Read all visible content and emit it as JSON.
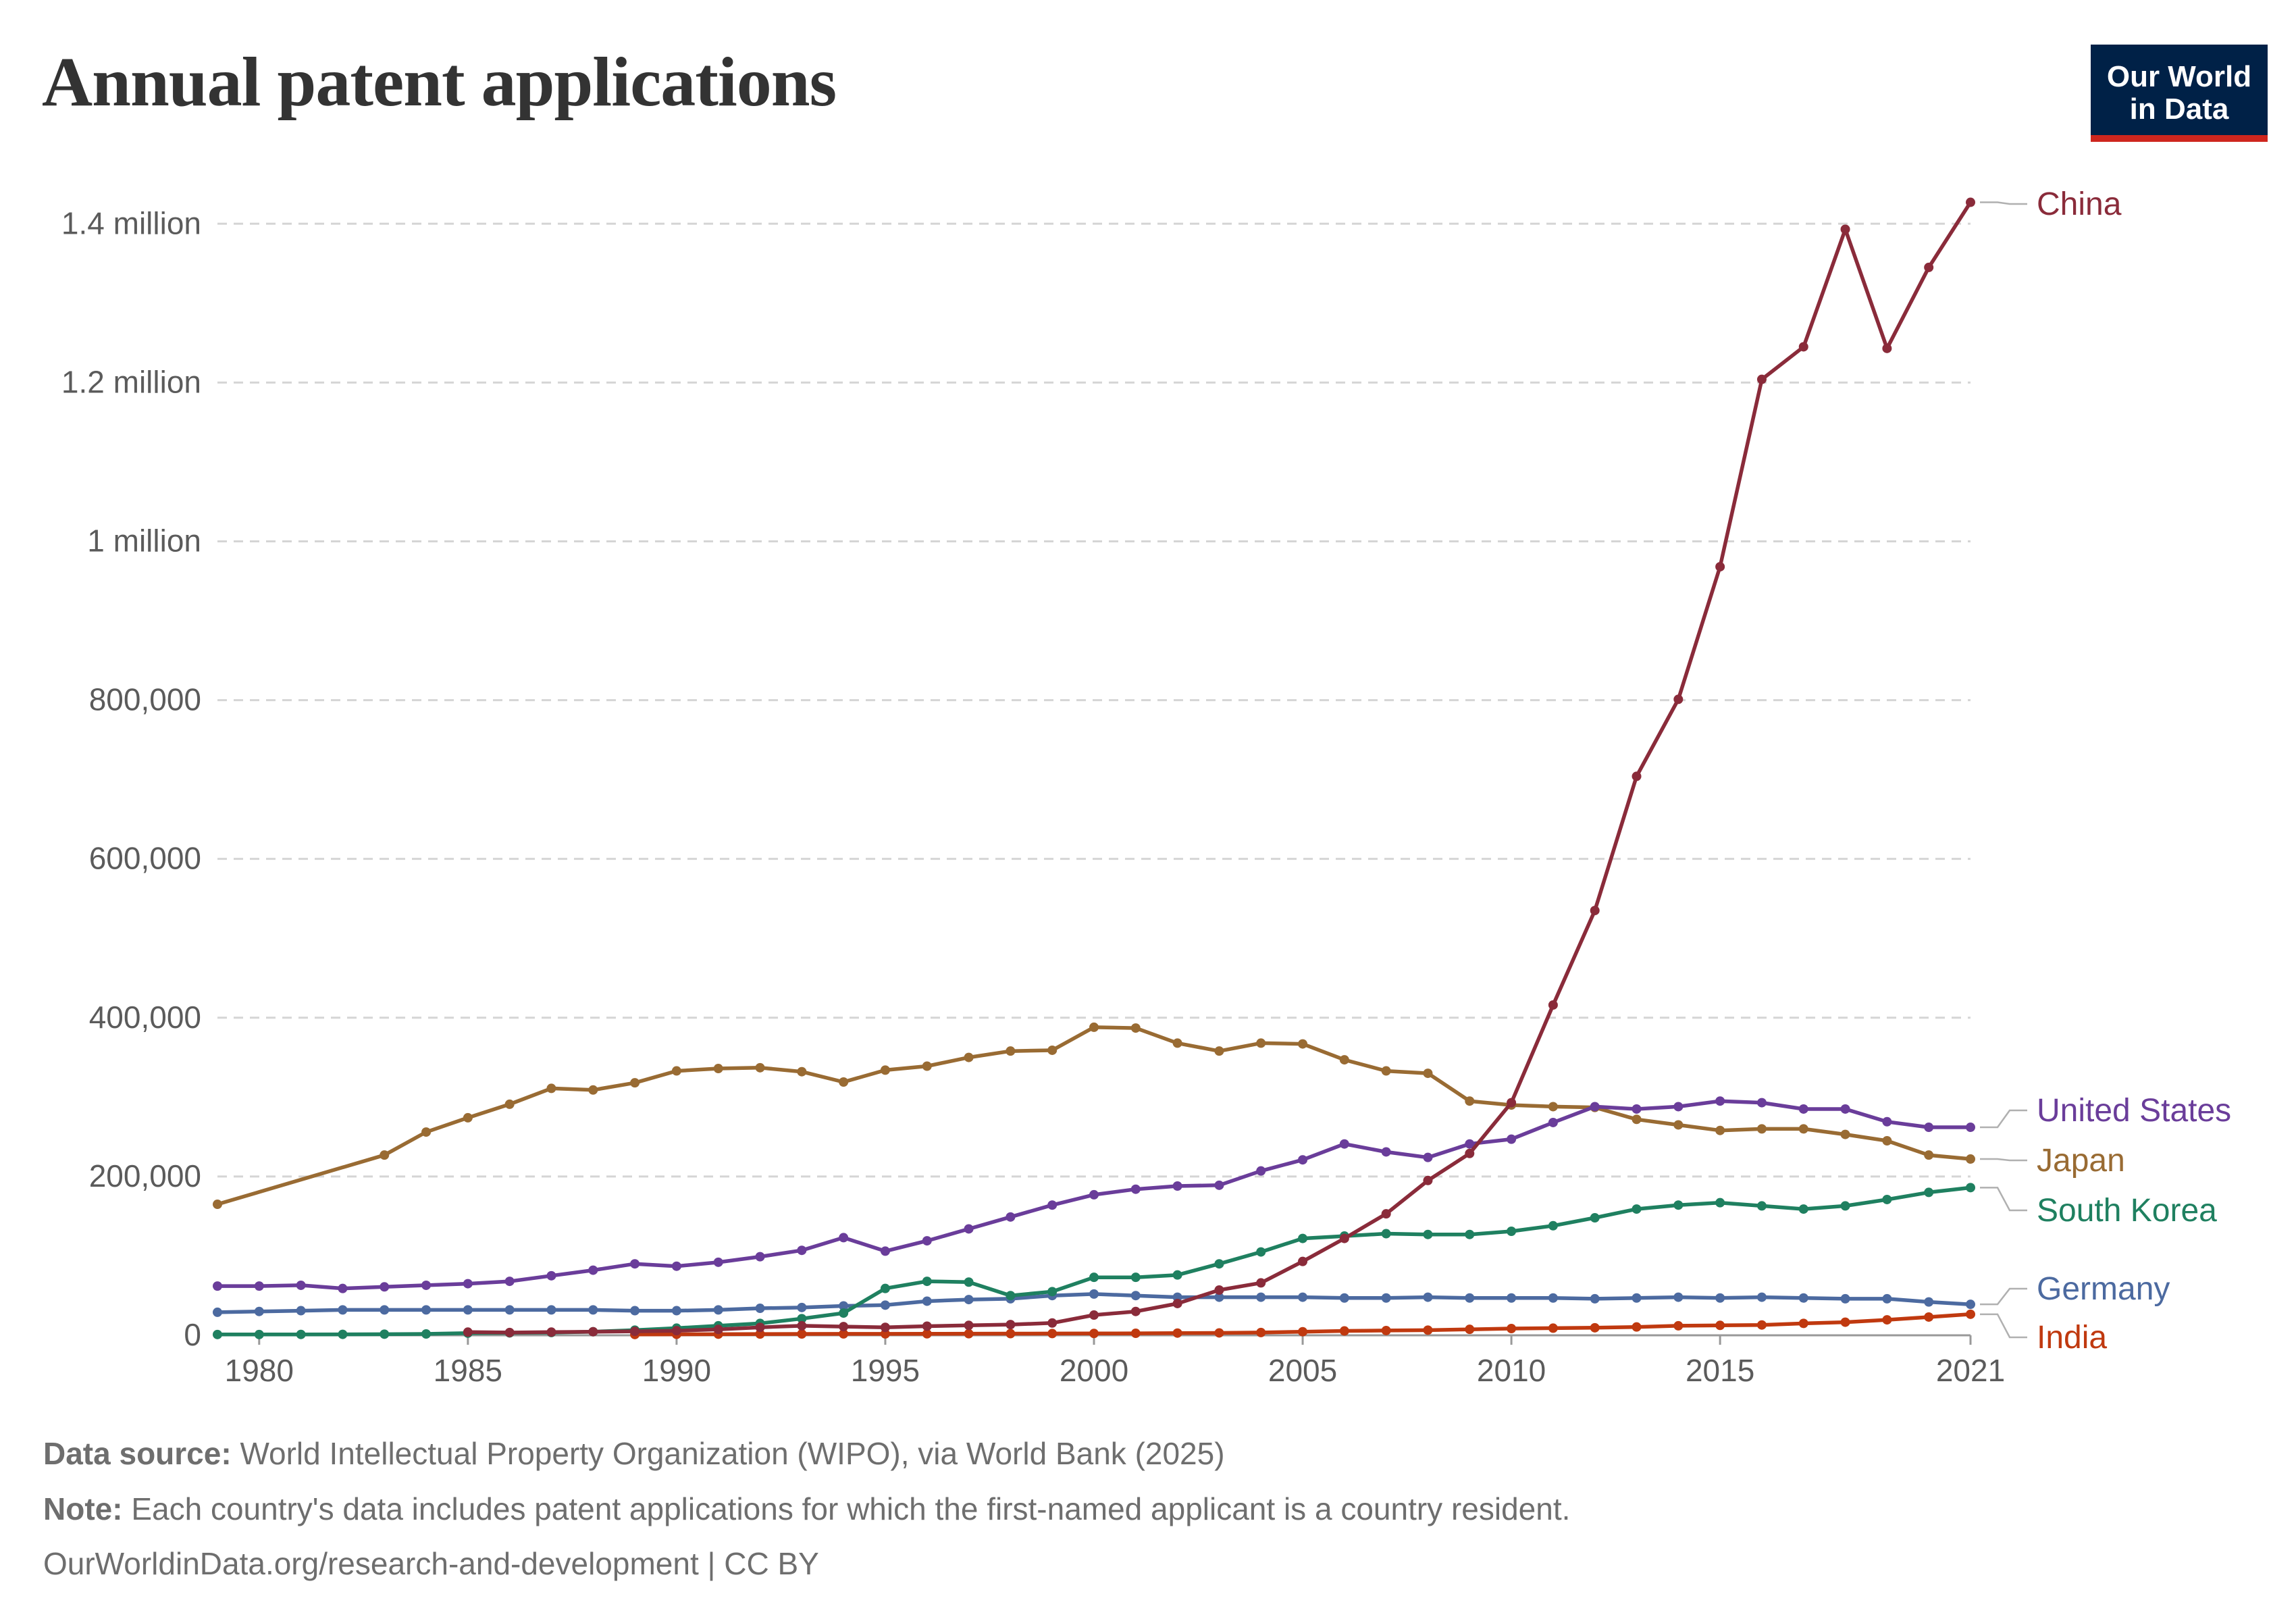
{
  "header": {
    "title": "Annual patent applications",
    "logo_line1": "Our World",
    "logo_line2": "in Data"
  },
  "footer": {
    "source_label": "Data source:",
    "source_text": "World Intellectual Property Organization (WIPO), via World Bank (2025)",
    "note_label": "Note:",
    "note_text": "Each country's data includes patent applications for which the first-named applicant is a country resident.",
    "url_text": "OurWorldinData.org/research-and-development | CC BY"
  },
  "colors": {
    "China": "#8a2b3a",
    "United States": "#6a3d9a",
    "Japan": "#996b33",
    "South Korea": "#1f8060",
    "Germany": "#4c6aa0",
    "India": "#c0390f"
  },
  "chart_data": {
    "type": "line",
    "title": "Annual patent applications",
    "xlabel": "",
    "ylabel": "",
    "xlim": [
      1979,
      2021
    ],
    "ylim": [
      0,
      1430000
    ],
    "grid": true,
    "legend": "right end labels",
    "x_ticks": [
      "1980",
      "1985",
      "1990",
      "1995",
      "2000",
      "2005",
      "2010",
      "2015",
      "2021"
    ],
    "y_ticks": [
      {
        "value": 0,
        "label": "0"
      },
      {
        "value": 200000,
        "label": "200,000"
      },
      {
        "value": 400000,
        "label": "400,000"
      },
      {
        "value": 600000,
        "label": "600,000"
      },
      {
        "value": 800000,
        "label": "800,000"
      },
      {
        "value": 1000000,
        "label": "1 million"
      },
      {
        "value": 1200000,
        "label": "1.2 million"
      },
      {
        "value": 1400000,
        "label": "1.4 million"
      }
    ],
    "series": [
      {
        "name": "China",
        "x": [
          1985,
          1986,
          1987,
          1988,
          1989,
          1990,
          1991,
          1992,
          1993,
          1994,
          1995,
          1996,
          1997,
          1998,
          1999,
          2000,
          2001,
          2002,
          2003,
          2004,
          2005,
          2006,
          2007,
          2008,
          2009,
          2010,
          2011,
          2012,
          2013,
          2014,
          2015,
          2016,
          2017,
          2018,
          2019,
          2020,
          2021
        ],
        "values": [
          4000,
          3500,
          4000,
          4500,
          5000,
          5800,
          7400,
          10000,
          12000,
          11000,
          10000,
          11500,
          12500,
          13500,
          15500,
          25500,
          30000,
          40000,
          57000,
          66000,
          93000,
          122000,
          153000,
          195000,
          229000,
          293000,
          416000,
          535000,
          704000,
          801000,
          968000,
          1204000,
          1245000,
          1393000,
          1243000,
          1345000,
          1427000
        ]
      },
      {
        "name": "United States",
        "x": [
          1979,
          1980,
          1981,
          1982,
          1983,
          1984,
          1985,
          1986,
          1987,
          1988,
          1989,
          1990,
          1991,
          1992,
          1993,
          1994,
          1995,
          1996,
          1997,
          1998,
          1999,
          2000,
          2001,
          2002,
          2003,
          2004,
          2005,
          2006,
          2007,
          2008,
          2009,
          2010,
          2011,
          2012,
          2013,
          2014,
          2015,
          2016,
          2017,
          2018,
          2019,
          2020,
          2021
        ],
        "values": [
          62000,
          62000,
          63000,
          59000,
          61000,
          63000,
          65000,
          68000,
          75000,
          82000,
          90000,
          87000,
          92000,
          99000,
          107000,
          123000,
          106000,
          119000,
          134000,
          149000,
          164000,
          177000,
          184000,
          188000,
          189000,
          207000,
          221000,
          241000,
          231000,
          224000,
          241000,
          247000,
          268000,
          288000,
          285000,
          288000,
          295000,
          293000,
          285000,
          285000,
          269000,
          262000,
          262000
        ]
      },
      {
        "name": "Japan",
        "x": [
          1979,
          1983,
          1984,
          1985,
          1986,
          1987,
          1988,
          1989,
          1990,
          1991,
          1992,
          1993,
          1994,
          1995,
          1996,
          1997,
          1998,
          1999,
          2000,
          2001,
          2002,
          2003,
          2004,
          2005,
          2006,
          2007,
          2008,
          2009,
          2010,
          2011,
          2012,
          2013,
          2014,
          2015,
          2016,
          2017,
          2018,
          2019,
          2020,
          2021
        ],
        "values": [
          165000,
          227000,
          256000,
          274000,
          291000,
          311000,
          309000,
          318000,
          333000,
          336000,
          337000,
          332000,
          319000,
          334000,
          339000,
          350000,
          358000,
          359000,
          388000,
          387000,
          368000,
          358000,
          368000,
          367000,
          347000,
          333000,
          330000,
          295000,
          290000,
          288000,
          287000,
          272000,
          265000,
          258000,
          260000,
          260000,
          253000,
          245000,
          227000,
          222000
        ]
      },
      {
        "name": "South Korea",
        "x": [
          1979,
          1980,
          1981,
          1982,
          1983,
          1984,
          1985,
          1986,
          1987,
          1988,
          1989,
          1990,
          1991,
          1992,
          1993,
          1994,
          1995,
          1996,
          1997,
          1998,
          1999,
          2000,
          2001,
          2002,
          2003,
          2004,
          2005,
          2006,
          2007,
          2008,
          2009,
          2010,
          2011,
          2012,
          2013,
          2014,
          2015,
          2016,
          2017,
          2018,
          2019,
          2020,
          2021
        ],
        "values": [
          1000,
          1000,
          1100,
          1200,
          1400,
          1700,
          2700,
          3000,
          3500,
          4500,
          6500,
          9000,
          12000,
          15000,
          21000,
          28000,
          59000,
          68000,
          67000,
          50000,
          55000,
          73000,
          73000,
          76000,
          90000,
          105000,
          122000,
          125000,
          128000,
          127000,
          127000,
          131000,
          138000,
          148000,
          159000,
          164000,
          167000,
          163000,
          159000,
          163000,
          171000,
          180000,
          186000
        ]
      },
      {
        "name": "Germany",
        "x": [
          1979,
          1980,
          1981,
          1982,
          1983,
          1984,
          1985,
          1986,
          1987,
          1988,
          1989,
          1990,
          1991,
          1992,
          1993,
          1994,
          1995,
          1996,
          1997,
          1998,
          1999,
          2000,
          2001,
          2002,
          2003,
          2004,
          2005,
          2006,
          2007,
          2008,
          2009,
          2010,
          2011,
          2012,
          2013,
          2014,
          2015,
          2016,
          2017,
          2018,
          2019,
          2020,
          2021
        ],
        "values": [
          29000,
          30000,
          31000,
          32000,
          32000,
          32000,
          32000,
          32000,
          32000,
          32000,
          31000,
          31000,
          32000,
          34000,
          35000,
          37000,
          38000,
          43000,
          45000,
          46000,
          50000,
          52000,
          50000,
          48000,
          48000,
          48000,
          48000,
          47000,
          47000,
          48000,
          47000,
          47000,
          47000,
          46000,
          47000,
          48000,
          47000,
          48000,
          47000,
          46000,
          46000,
          42000,
          39000
        ]
      },
      {
        "name": "India",
        "x": [
          1989,
          1990,
          1991,
          1992,
          1993,
          1994,
          1995,
          1996,
          1997,
          1998,
          1999,
          2000,
          2001,
          2002,
          2003,
          2004,
          2005,
          2006,
          2007,
          2008,
          2009,
          2010,
          2011,
          2012,
          2013,
          2014,
          2015,
          2016,
          2017,
          2018,
          2019,
          2020,
          2021
        ],
        "values": [
          1000,
          1200,
          1400,
          1600,
          1700,
          1800,
          1800,
          1900,
          2000,
          2100,
          2200,
          2300,
          2500,
          2800,
          3000,
          3500,
          4500,
          5500,
          6000,
          6500,
          7500,
          8500,
          9000,
          9500,
          10500,
          12000,
          12500,
          13000,
          15000,
          16500,
          19500,
          23000,
          26500
        ]
      }
    ],
    "end_labels": [
      "China",
      "United States",
      "Japan",
      "South Korea",
      "Germany",
      "India"
    ]
  }
}
